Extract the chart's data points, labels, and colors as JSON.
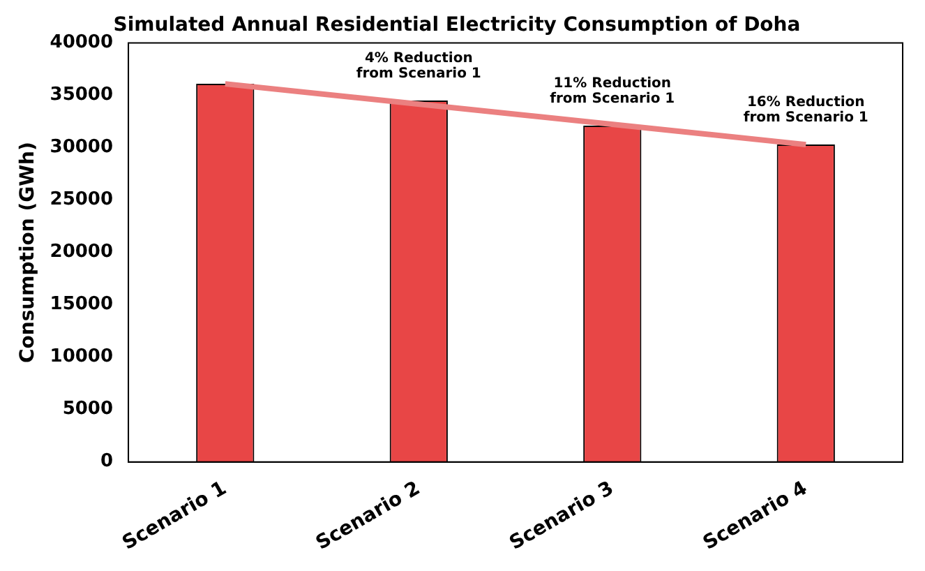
{
  "chart_data": {
    "type": "bar",
    "title": "Simulated Annual Residential Electricity Consumption of Doha",
    "ylabel": "Consumption (GWh)",
    "categories": [
      "Scenario 1",
      "Scenario 2",
      "Scenario 3",
      "Scenario 4"
    ],
    "series": [
      {
        "color": "#e84646",
        "values": [
          36100,
          34500,
          32100,
          30300
        ]
      },
      {
        "type": "line",
        "color": "#eb8080",
        "x": [
          "Scenario 1",
          "Scenario 4"
        ],
        "values": [
          36100,
          30300
        ]
      }
    ],
    "ylim": [
      0,
      40000
    ],
    "yticks": [
      0,
      5000,
      10000,
      15000,
      20000,
      25000,
      30000,
      35000,
      40000
    ],
    "grid": false,
    "legend": false,
    "annotations": [
      "4% Reduction\nfrom Scenario 1",
      "11% Reduction\nfrom Scenario 1",
      "16% Reduction\nfrom Scenario 1"
    ]
  }
}
